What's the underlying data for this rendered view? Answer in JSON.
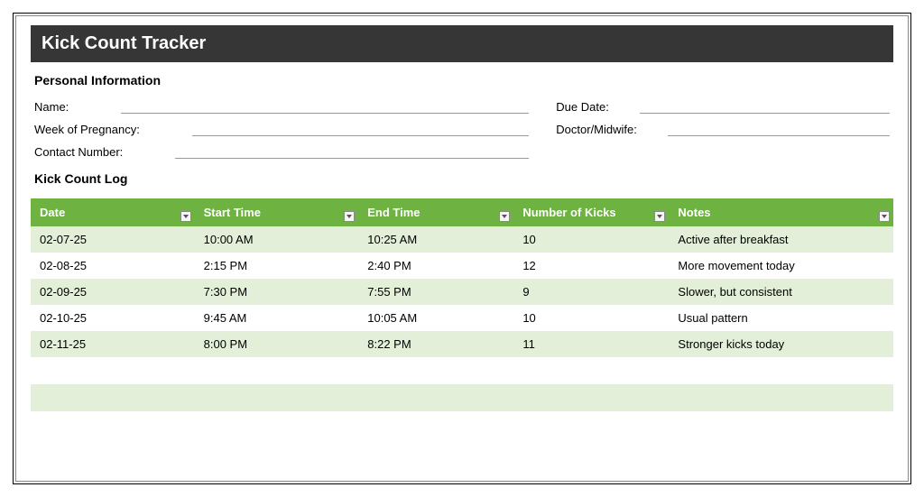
{
  "title": "Kick Count Tracker",
  "sections": {
    "personal": {
      "heading": "Personal Information",
      "fields_left": [
        {
          "label": "Name:"
        },
        {
          "label": "Week of Pregnancy:"
        },
        {
          "label": "Contact Number:"
        }
      ],
      "fields_right": [
        {
          "label": "Due Date:"
        },
        {
          "label": "Doctor/Midwife:"
        }
      ]
    },
    "log": {
      "heading": "Kick Count Log",
      "header_bg": "#6eb342",
      "row_odd_bg": "#e4efd9",
      "row_even_bg": "#ffffff",
      "columns": [
        "Date",
        "Start Time",
        "End Time",
        "Number of Kicks",
        "Notes"
      ],
      "rows": [
        {
          "date": "02-07-25",
          "start": "10:00 AM",
          "end": "10:25 AM",
          "kicks": "10",
          "notes": "Active after breakfast"
        },
        {
          "date": "02-08-25",
          "start": "2:15 PM",
          "end": "2:40 PM",
          "kicks": "12",
          "notes": "More movement today"
        },
        {
          "date": "02-09-25",
          "start": "7:30 PM",
          "end": "7:55 PM",
          "kicks": "9",
          "notes": "Slower, but consistent"
        },
        {
          "date": "02-10-25",
          "start": "9:45 AM",
          "end": "10:05 AM",
          "kicks": "10",
          "notes": "Usual pattern"
        },
        {
          "date": "02-11-25",
          "start": "8:00 PM",
          "end": "8:22 PM",
          "kicks": "11",
          "notes": "Stronger kicks today"
        }
      ],
      "empty_rows": 3
    }
  }
}
